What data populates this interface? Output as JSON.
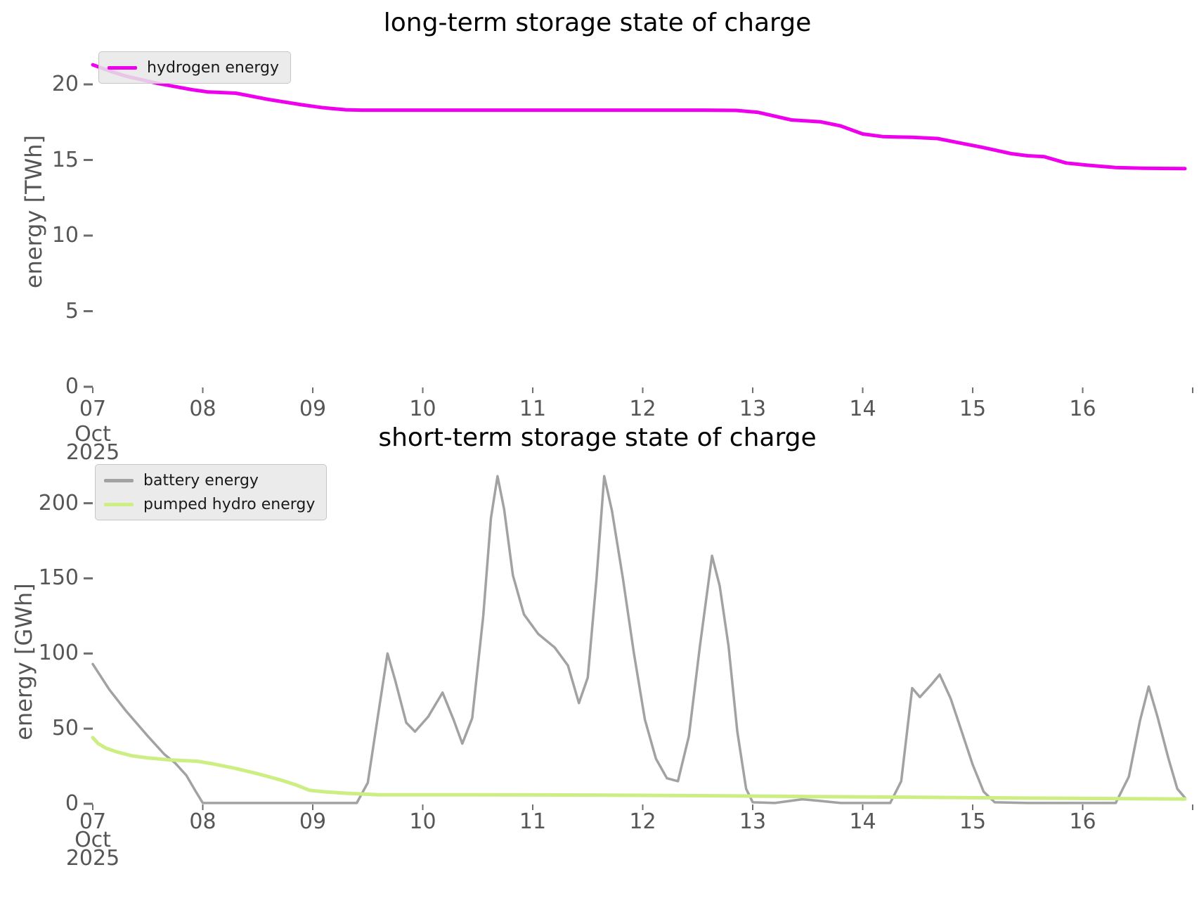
{
  "figure": {
    "background": "#ffffff",
    "tick_color": "#565656",
    "axis_label_color": "#555555"
  },
  "chart_data": [
    {
      "type": "line",
      "title": "long-term storage state of charge",
      "ylabel": "energy [TWh]",
      "xlabel": "",
      "x_axis": "date, October 2025",
      "xlim": [
        7,
        17
      ],
      "ylim": [
        0,
        22
      ],
      "grid": false,
      "legend_position": "upper left",
      "y_ticks": [
        0,
        5,
        10,
        15,
        20
      ],
      "x_tick_days": [
        7,
        8,
        9,
        10,
        11,
        12,
        13,
        14,
        15,
        16,
        17
      ],
      "x_tick_labels": [
        "07",
        "08",
        "09",
        "10",
        "11",
        "12",
        "13",
        "14",
        "15",
        "16",
        ""
      ],
      "x_first_tick_sublabels": [
        "Oct",
        "2025"
      ],
      "series": [
        {
          "name": "hydrogen energy",
          "color": "#ee00ee",
          "width": 5,
          "points": [
            [
              7.0,
              21.3
            ],
            [
              7.15,
              20.9
            ],
            [
              7.3,
              20.55
            ],
            [
              7.45,
              20.3
            ],
            [
              7.6,
              20.05
            ],
            [
              7.75,
              19.85
            ],
            [
              7.9,
              19.65
            ],
            [
              8.05,
              19.5
            ],
            [
              8.3,
              19.42
            ],
            [
              8.6,
              19.0
            ],
            [
              8.9,
              18.65
            ],
            [
              9.1,
              18.45
            ],
            [
              9.3,
              18.32
            ],
            [
              9.45,
              18.3
            ],
            [
              10.5,
              18.3
            ],
            [
              11.5,
              18.3
            ],
            [
              12.55,
              18.3
            ],
            [
              12.85,
              18.28
            ],
            [
              13.05,
              18.15
            ],
            [
              13.35,
              17.65
            ],
            [
              13.62,
              17.52
            ],
            [
              13.8,
              17.25
            ],
            [
              14.0,
              16.72
            ],
            [
              14.18,
              16.55
            ],
            [
              14.45,
              16.5
            ],
            [
              14.68,
              16.42
            ],
            [
              14.9,
              16.1
            ],
            [
              15.1,
              15.82
            ],
            [
              15.35,
              15.42
            ],
            [
              15.5,
              15.28
            ],
            [
              15.65,
              15.22
            ],
            [
              15.85,
              14.8
            ],
            [
              16.05,
              14.65
            ],
            [
              16.3,
              14.5
            ],
            [
              16.55,
              14.45
            ],
            [
              16.93,
              14.43
            ]
          ]
        }
      ]
    },
    {
      "type": "line",
      "title": "short-term storage state of charge",
      "ylabel": "energy [GWh]",
      "xlabel": "",
      "x_axis": "date, October 2025",
      "xlim": [
        7,
        17
      ],
      "ylim": [
        0,
        230
      ],
      "grid": false,
      "legend_position": "upper left",
      "y_ticks": [
        0,
        50,
        100,
        150,
        200
      ],
      "x_tick_days": [
        7,
        8,
        9,
        10,
        11,
        12,
        13,
        14,
        15,
        16,
        17
      ],
      "x_tick_labels": [
        "07",
        "08",
        "09",
        "10",
        "11",
        "12",
        "13",
        "14",
        "15",
        "16",
        ""
      ],
      "x_first_tick_sublabels": [
        "Oct",
        "2025"
      ],
      "series": [
        {
          "name": "battery energy",
          "color": "#a2a2a2",
          "width": 3.5,
          "points": [
            [
              7.0,
              93
            ],
            [
              7.15,
              76
            ],
            [
              7.3,
              62
            ],
            [
              7.5,
              45
            ],
            [
              7.65,
              33
            ],
            [
              7.75,
              27
            ],
            [
              7.85,
              19
            ],
            [
              7.93,
              9
            ],
            [
              8.0,
              0.5
            ],
            [
              8.4,
              0.5
            ],
            [
              8.9,
              0.5
            ],
            [
              9.4,
              0.5
            ],
            [
              9.5,
              14
            ],
            [
              9.6,
              62
            ],
            [
              9.68,
              100
            ],
            [
              9.75,
              82
            ],
            [
              9.85,
              54
            ],
            [
              9.93,
              48
            ],
            [
              10.05,
              58
            ],
            [
              10.18,
              74
            ],
            [
              10.28,
              56
            ],
            [
              10.36,
              40
            ],
            [
              10.45,
              57
            ],
            [
              10.55,
              125
            ],
            [
              10.62,
              190
            ],
            [
              10.68,
              218
            ],
            [
              10.74,
              196
            ],
            [
              10.82,
              152
            ],
            [
              10.92,
              126
            ],
            [
              11.05,
              113
            ],
            [
              11.2,
              104
            ],
            [
              11.32,
              92
            ],
            [
              11.42,
              67
            ],
            [
              11.5,
              84
            ],
            [
              11.58,
              150
            ],
            [
              11.65,
              218
            ],
            [
              11.72,
              195
            ],
            [
              11.82,
              150
            ],
            [
              11.92,
              100
            ],
            [
              12.02,
              56
            ],
            [
              12.12,
              30
            ],
            [
              12.22,
              17
            ],
            [
              12.32,
              15
            ],
            [
              12.42,
              45
            ],
            [
              12.52,
              105
            ],
            [
              12.63,
              165
            ],
            [
              12.7,
              145
            ],
            [
              12.78,
              105
            ],
            [
              12.86,
              48
            ],
            [
              12.94,
              10
            ],
            [
              13.0,
              1
            ],
            [
              13.2,
              0.5
            ],
            [
              13.45,
              3
            ],
            [
              13.6,
              2
            ],
            [
              13.8,
              0.5
            ],
            [
              14.1,
              0.5
            ],
            [
              14.25,
              0.5
            ],
            [
              14.35,
              15
            ],
            [
              14.45,
              77
            ],
            [
              14.52,
              71
            ],
            [
              14.62,
              79
            ],
            [
              14.7,
              86
            ],
            [
              14.8,
              70
            ],
            [
              14.9,
              48
            ],
            [
              15.0,
              26
            ],
            [
              15.1,
              8
            ],
            [
              15.2,
              1
            ],
            [
              15.5,
              0.5
            ],
            [
              16.0,
              0.5
            ],
            [
              16.3,
              0.5
            ],
            [
              16.42,
              18
            ],
            [
              16.52,
              55
            ],
            [
              16.6,
              78
            ],
            [
              16.68,
              58
            ],
            [
              16.78,
              30
            ],
            [
              16.86,
              10
            ],
            [
              16.93,
              4
            ]
          ]
        },
        {
          "name": "pumped hydro energy",
          "color": "#cdee83",
          "width": 5,
          "points": [
            [
              7.0,
              44
            ],
            [
              7.05,
              40
            ],
            [
              7.12,
              37
            ],
            [
              7.22,
              34.5
            ],
            [
              7.35,
              32
            ],
            [
              7.5,
              30.5
            ],
            [
              7.7,
              29.2
            ],
            [
              7.95,
              28.3
            ],
            [
              8.1,
              26.5
            ],
            [
              8.3,
              23.5
            ],
            [
              8.5,
              20
            ],
            [
              8.7,
              16
            ],
            [
              8.85,
              12.5
            ],
            [
              8.97,
              9
            ],
            [
              9.1,
              8
            ],
            [
              9.3,
              7
            ],
            [
              9.45,
              6.5
            ],
            [
              9.6,
              6
            ],
            [
              10.5,
              6
            ],
            [
              11.5,
              5.8
            ],
            [
              12.5,
              5.4
            ],
            [
              13.5,
              4.8
            ],
            [
              14.5,
              4.3
            ],
            [
              15.5,
              3.8
            ],
            [
              16.4,
              3.4
            ],
            [
              16.93,
              3.2
            ]
          ]
        }
      ]
    }
  ]
}
